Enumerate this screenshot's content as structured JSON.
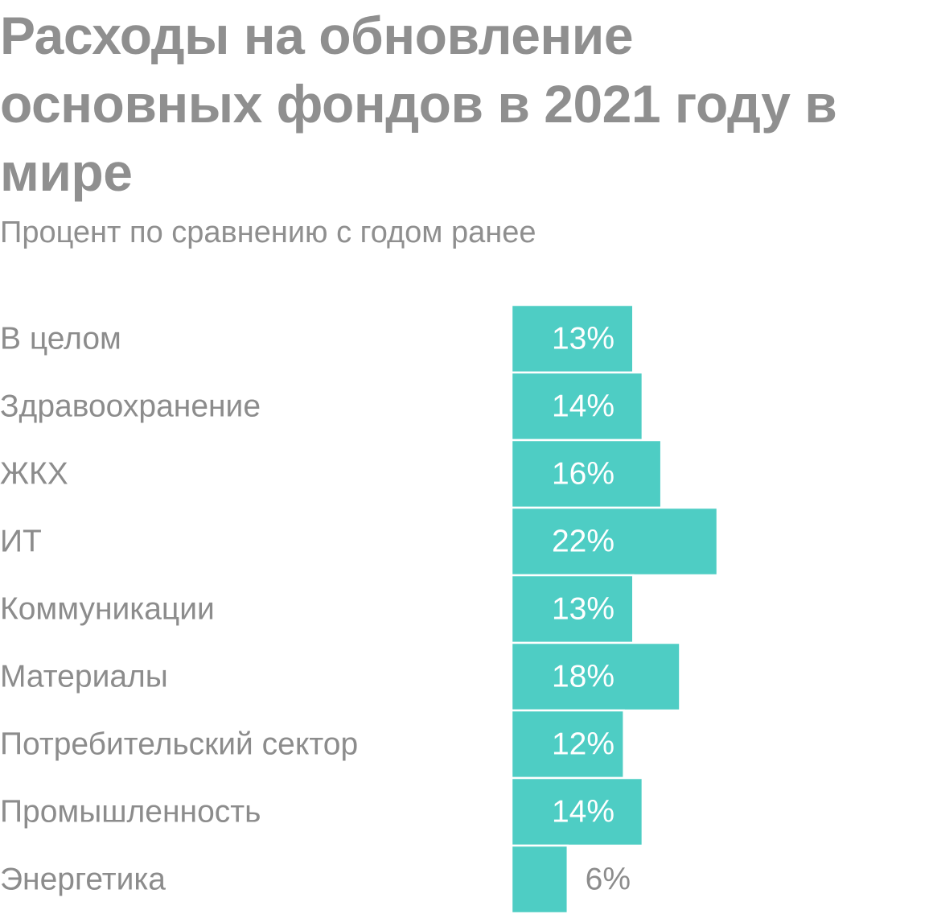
{
  "chart_data": {
    "type": "bar",
    "orientation": "horizontal",
    "title": "Расходы на обновление основных фондов в 2021 году в мире",
    "subtitle": "Процент по сравнению с годом ранее",
    "categories": [
      "В целом",
      "Здравоохранение",
      "ЖКХ",
      "ИТ",
      "Коммуникации",
      "Материалы",
      "Потребительский сектор",
      "Промышленность",
      "Энергетика"
    ],
    "values": [
      13,
      14,
      16,
      22,
      13,
      18,
      12,
      14,
      6
    ],
    "value_labels": [
      "13%",
      "14%",
      "16%",
      "22%",
      "13%",
      "18%",
      "12%",
      "14%",
      "6%"
    ],
    "xlim": [
      0,
      22
    ],
    "grid": false,
    "legend": "none",
    "colors": {
      "bar": "#4ecdc4",
      "bar_border": "#ffffff",
      "text": "#8f8f8f",
      "value_inside": "#ffffff",
      "value_outside": "#8c8c8c"
    }
  }
}
